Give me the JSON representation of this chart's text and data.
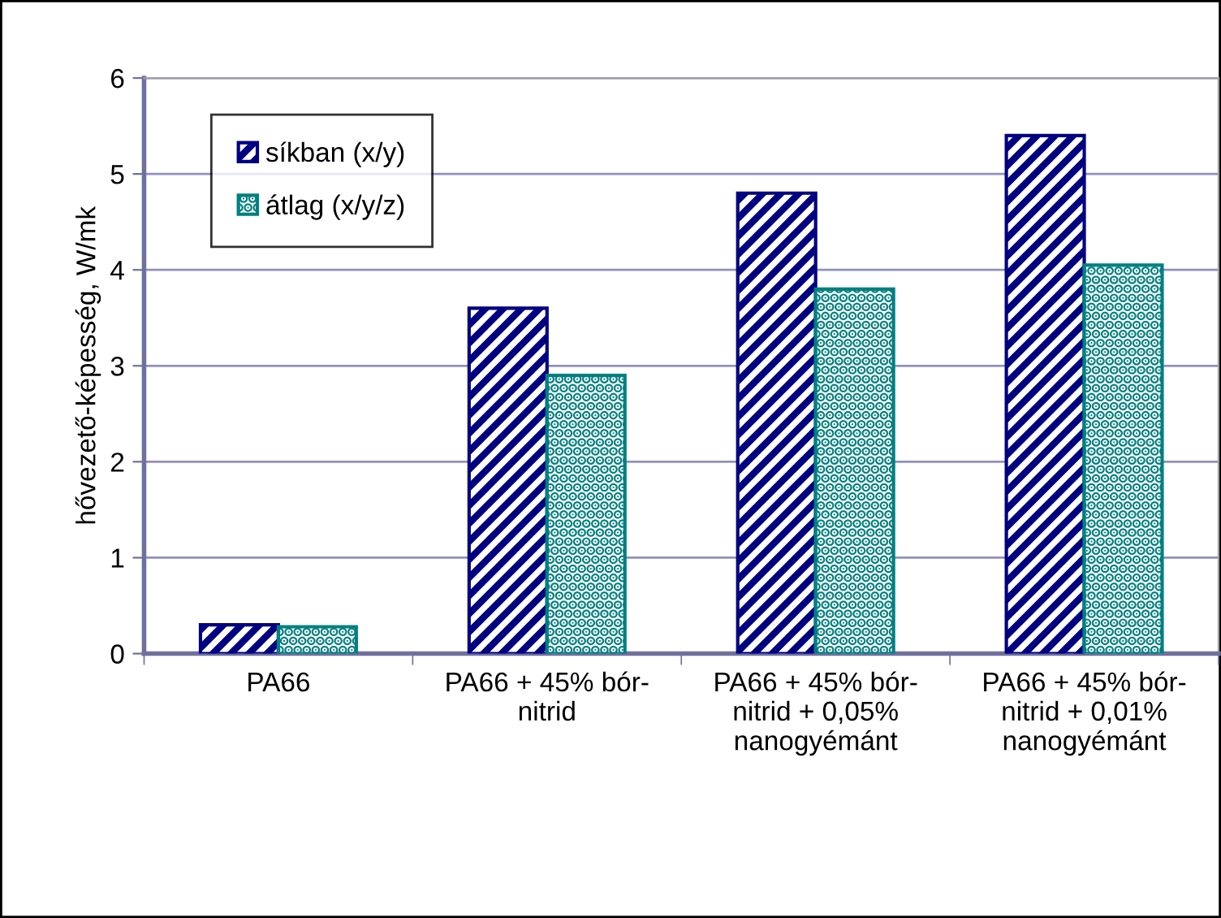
{
  "chart_data": {
    "type": "bar",
    "ylabel": "hővezető-képesség, W/mk",
    "categories": [
      "PA66",
      "PA66 + 45% bór-\nnitrid",
      "PA66 + 45% bór-\nnitrid + 0,05%\nnanogyémánt",
      "PA66 + 45% bór-\nnitrid + 0,01%\nnanogyémánt"
    ],
    "series": [
      {
        "name": "síkban (x/y)",
        "color": "#000080",
        "values": [
          0.3,
          3.6,
          4.8,
          5.4
        ]
      },
      {
        "name": "átlag (x/y/z)",
        "color": "#008080",
        "values": [
          0.28,
          2.9,
          3.8,
          4.05
        ]
      }
    ],
    "ylim": [
      0,
      6
    ],
    "yticks": [
      0,
      1,
      2,
      3,
      4,
      5,
      6
    ],
    "grid": "y",
    "legend": "top left"
  }
}
